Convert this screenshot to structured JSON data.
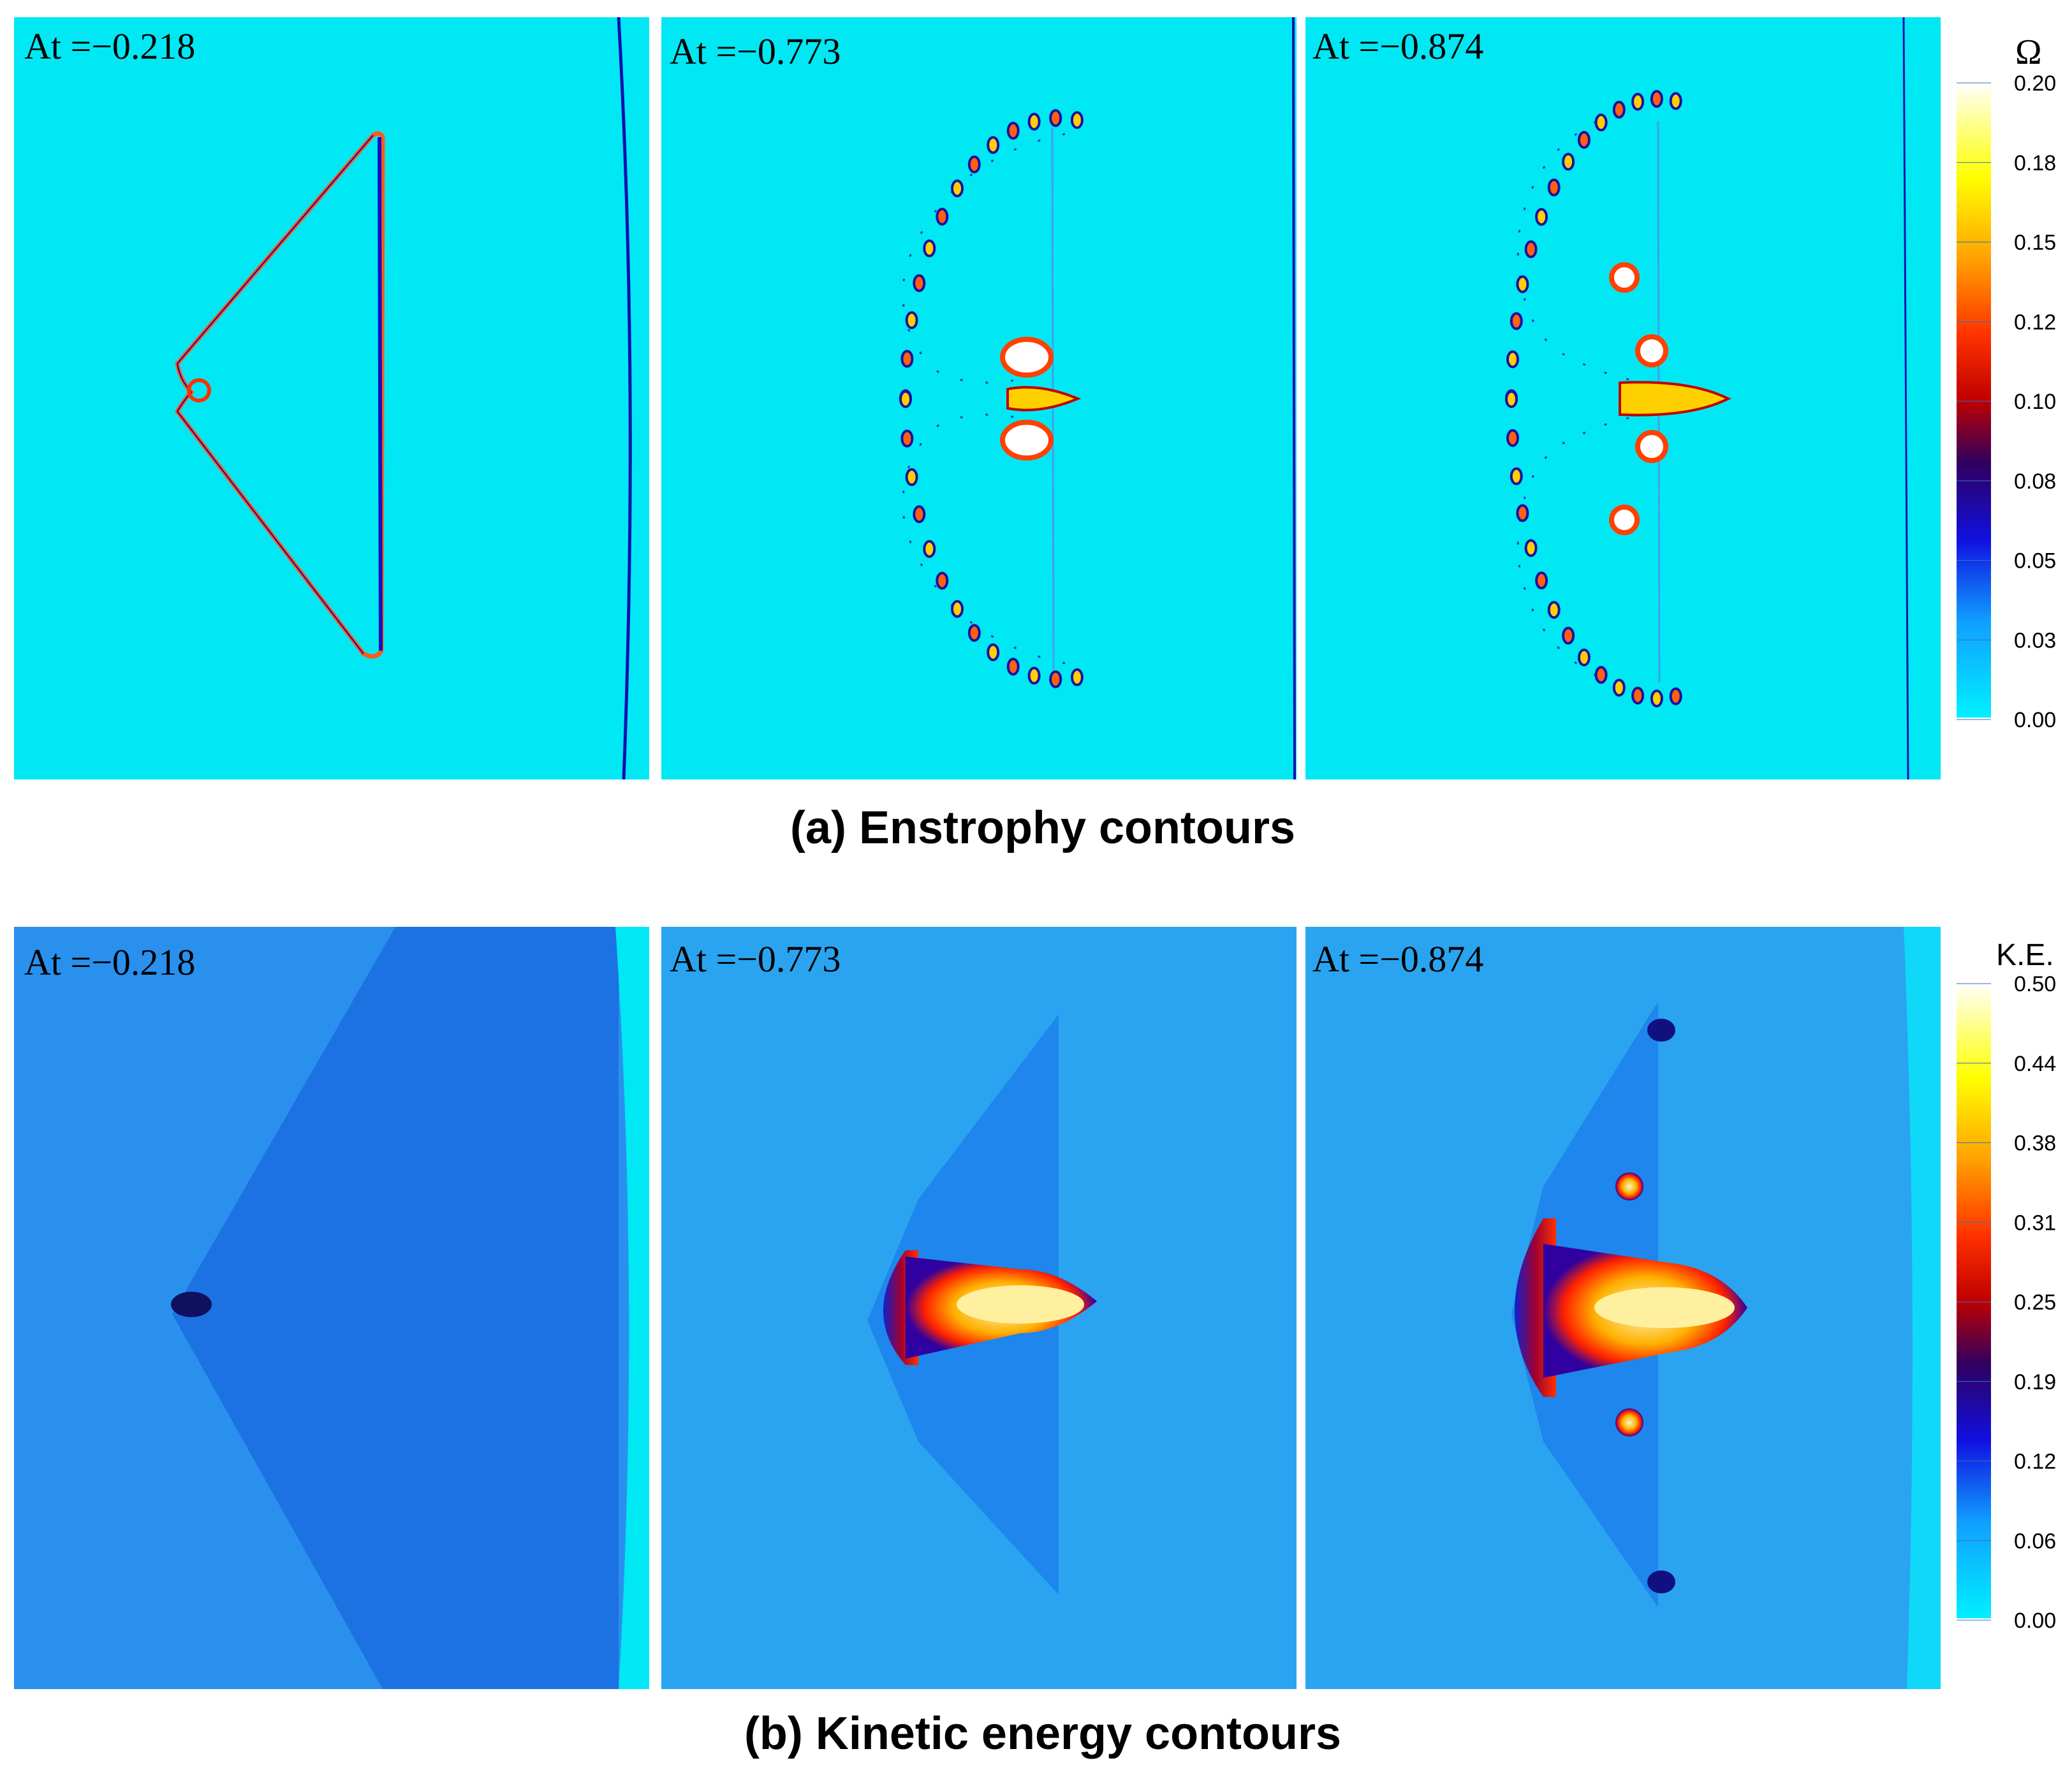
{
  "figure": {
    "enstrophy": {
      "caption": "(a) Enstrophy contours",
      "colorbar_title": "Ω",
      "colorbar_ticks": [
        "0.20",
        "0.18",
        "0.15",
        "0.12",
        "0.10",
        "0.08",
        "0.05",
        "0.03",
        "0.00"
      ],
      "panel_labels": [
        "At =−0.218",
        "At =−0.773",
        "At =−0.874"
      ]
    },
    "kinetic": {
      "caption": "(b) Kinetic energy contours",
      "colorbar_title": "K.E.",
      "colorbar_ticks": [
        "0.50",
        "0.44",
        "0.38",
        "0.31",
        "0.25",
        "0.19",
        "0.12",
        "0.06",
        "0.00"
      ],
      "panel_labels": [
        "At =−0.218",
        "At =−0.773",
        "At =−0.874"
      ]
    }
  },
  "colors": {
    "enstrophy_background": "#00e8f4",
    "ke_background": "#2aa4f0",
    "colormap": [
      "#00f0ff",
      "#1090ff",
      "#1010e0",
      "#300060",
      "#c00000",
      "#ff3000",
      "#ffa000",
      "#ffff00",
      "#ffffff"
    ]
  },
  "chart_data": [
    {
      "type": "heatmap",
      "title": "(a) Enstrophy contours",
      "panels": [
        "At =−0.218",
        "At =−0.773",
        "At =−0.874"
      ],
      "atwood_numbers": [
        -0.218,
        -0.773,
        -0.874
      ],
      "colorbar": {
        "label": "Ω",
        "range": [
          0.0,
          0.2
        ],
        "ticks": [
          0.2,
          0.18,
          0.15,
          0.12,
          0.1,
          0.08,
          0.05,
          0.03,
          0.0
        ]
      }
    },
    {
      "type": "heatmap",
      "title": "(b) Kinetic energy contours",
      "panels": [
        "At =−0.218",
        "At =−0.773",
        "At =−0.874"
      ],
      "atwood_numbers": [
        -0.218,
        -0.773,
        -0.874
      ],
      "colorbar": {
        "label": "K.E.",
        "range": [
          0.0,
          0.5
        ],
        "ticks": [
          0.5,
          0.44,
          0.38,
          0.31,
          0.25,
          0.19,
          0.12,
          0.06,
          0.0
        ]
      }
    }
  ]
}
